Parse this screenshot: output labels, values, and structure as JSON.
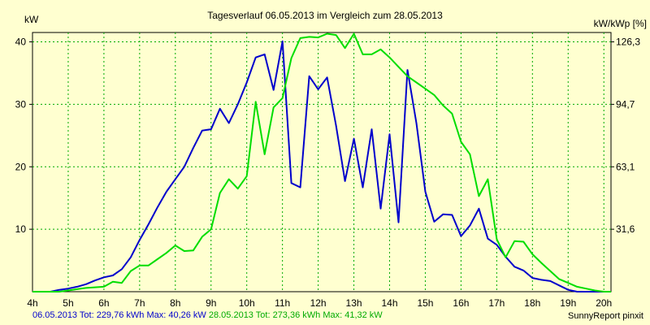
{
  "chart_data": {
    "type": "line",
    "title": "Tagesverlauf 06.05.2013 im Vergleich zum 28.05.2013",
    "ylabel_left": "kW",
    "ylabel_right": "kW/kWp [%]",
    "xlim": [
      4,
      20.2
    ],
    "ylim": [
      0,
      41.5
    ],
    "grid": true,
    "x_ticks": [
      {
        "value": 4,
        "label": "4h"
      },
      {
        "value": 5,
        "label": "5h"
      },
      {
        "value": 6,
        "label": "6h"
      },
      {
        "value": 7,
        "label": "7h"
      },
      {
        "value": 8,
        "label": "8h"
      },
      {
        "value": 9,
        "label": "9h"
      },
      {
        "value": 10,
        "label": "10h"
      },
      {
        "value": 11,
        "label": "11h"
      },
      {
        "value": 12,
        "label": "12h"
      },
      {
        "value": 13,
        "label": "13h"
      },
      {
        "value": 14,
        "label": "14h"
      },
      {
        "value": 15,
        "label": "15h"
      },
      {
        "value": 16,
        "label": "16h"
      },
      {
        "value": 17,
        "label": "17h"
      },
      {
        "value": 18,
        "label": "18h"
      },
      {
        "value": 19,
        "label": "19h"
      },
      {
        "value": 20,
        "label": "20h"
      }
    ],
    "y_ticks_left": [
      {
        "value": 10,
        "label": "10"
      },
      {
        "value": 20,
        "label": "20"
      },
      {
        "value": 30,
        "label": "30"
      },
      {
        "value": 40,
        "label": "40"
      }
    ],
    "y_ticks_right": [
      {
        "value": 10,
        "label": "31,6"
      },
      {
        "value": 20,
        "label": "63,1"
      },
      {
        "value": 30,
        "label": "94,7"
      },
      {
        "value": 40,
        "label": "126,3"
      }
    ],
    "series": [
      {
        "name": "06.05.2013",
        "color": "#0000cc",
        "points": [
          [
            4.0,
            0
          ],
          [
            4.5,
            0
          ],
          [
            4.75,
            0.3
          ],
          [
            5.0,
            0.5
          ],
          [
            5.25,
            0.8
          ],
          [
            5.5,
            1.2
          ],
          [
            5.75,
            1.8
          ],
          [
            6.0,
            2.3
          ],
          [
            6.25,
            2.6
          ],
          [
            6.5,
            3.6
          ],
          [
            6.75,
            5.5
          ],
          [
            7.0,
            8.3
          ],
          [
            7.25,
            10.8
          ],
          [
            7.5,
            13.5
          ],
          [
            7.75,
            16.0
          ],
          [
            8.0,
            18.0
          ],
          [
            8.25,
            20.0
          ],
          [
            8.5,
            23.0
          ],
          [
            8.75,
            25.8
          ],
          [
            9.0,
            26.0
          ],
          [
            9.25,
            29.3
          ],
          [
            9.5,
            27.0
          ],
          [
            9.75,
            30.0
          ],
          [
            10.0,
            33.5
          ],
          [
            10.25,
            37.5
          ],
          [
            10.5,
            38.0
          ],
          [
            10.75,
            32.3
          ],
          [
            11.0,
            40.1
          ],
          [
            11.25,
            17.4
          ],
          [
            11.5,
            16.7
          ],
          [
            11.75,
            34.5
          ],
          [
            12.0,
            32.4
          ],
          [
            12.25,
            34.3
          ],
          [
            12.5,
            26.6
          ],
          [
            12.75,
            17.7
          ],
          [
            13.0,
            24.5
          ],
          [
            13.25,
            16.7
          ],
          [
            13.5,
            26.0
          ],
          [
            13.75,
            13.3
          ],
          [
            14.0,
            25.2
          ],
          [
            14.25,
            11.1
          ],
          [
            14.5,
            35.5
          ],
          [
            14.75,
            27.0
          ],
          [
            15.0,
            16.0
          ],
          [
            15.25,
            11.2
          ],
          [
            15.5,
            12.4
          ],
          [
            15.75,
            12.3
          ],
          [
            16.0,
            8.9
          ],
          [
            16.25,
            10.6
          ],
          [
            16.5,
            13.3
          ],
          [
            16.75,
            8.5
          ],
          [
            17.0,
            7.5
          ],
          [
            17.25,
            5.6
          ],
          [
            17.5,
            4.0
          ],
          [
            17.75,
            3.4
          ],
          [
            18.0,
            2.2
          ],
          [
            18.25,
            1.9
          ],
          [
            18.5,
            1.7
          ],
          [
            18.75,
            1.0
          ],
          [
            19.0,
            0.3
          ],
          [
            19.25,
            0
          ],
          [
            20.0,
            0
          ]
        ]
      },
      {
        "name": "28.05.2013",
        "color": "#00dd00",
        "points": [
          [
            4.0,
            0
          ],
          [
            4.75,
            0
          ],
          [
            5.0,
            0.2
          ],
          [
            5.25,
            0.4
          ],
          [
            5.5,
            0.6
          ],
          [
            6.0,
            0.8
          ],
          [
            6.25,
            1.6
          ],
          [
            6.5,
            1.4
          ],
          [
            6.75,
            3.3
          ],
          [
            7.0,
            4.2
          ],
          [
            7.25,
            4.2
          ],
          [
            7.5,
            5.2
          ],
          [
            7.75,
            6.2
          ],
          [
            8.0,
            7.4
          ],
          [
            8.25,
            6.5
          ],
          [
            8.5,
            6.6
          ],
          [
            8.75,
            8.8
          ],
          [
            9.0,
            10.0
          ],
          [
            9.25,
            15.8
          ],
          [
            9.5,
            18.0
          ],
          [
            9.75,
            16.5
          ],
          [
            10.0,
            18.5
          ],
          [
            10.25,
            30.4
          ],
          [
            10.5,
            22.0
          ],
          [
            10.75,
            29.5
          ],
          [
            11.0,
            31.0
          ],
          [
            11.25,
            37.4
          ],
          [
            11.5,
            40.6
          ],
          [
            11.75,
            40.8
          ],
          [
            12.0,
            40.7
          ],
          [
            12.25,
            41.3
          ],
          [
            12.5,
            41.1
          ],
          [
            12.75,
            39.0
          ],
          [
            13.0,
            41.3
          ],
          [
            13.25,
            38.0
          ],
          [
            13.5,
            38.0
          ],
          [
            13.75,
            38.8
          ],
          [
            14.0,
            37.5
          ],
          [
            14.25,
            36.0
          ],
          [
            14.5,
            34.5
          ],
          [
            14.75,
            33.5
          ],
          [
            15.0,
            32.5
          ],
          [
            15.25,
            31.5
          ],
          [
            15.5,
            29.8
          ],
          [
            15.75,
            28.5
          ],
          [
            16.0,
            24.0
          ],
          [
            16.25,
            22.0
          ],
          [
            16.5,
            15.3
          ],
          [
            16.75,
            18.0
          ],
          [
            17.0,
            8.4
          ],
          [
            17.25,
            5.5
          ],
          [
            17.5,
            8.1
          ],
          [
            17.75,
            8.0
          ],
          [
            18.0,
            6.0
          ],
          [
            18.25,
            4.6
          ],
          [
            18.5,
            3.3
          ],
          [
            18.75,
            2.0
          ],
          [
            19.0,
            1.4
          ],
          [
            19.25,
            0.8
          ],
          [
            19.5,
            0.5
          ],
          [
            19.75,
            0.2
          ],
          [
            20.0,
            0
          ],
          [
            20.2,
            0
          ]
        ]
      }
    ]
  },
  "footer": {
    "series1_text": "06.05.2013 Tot: 229,76 kWh Max: 40,26 kW",
    "series2_text": "28.05.2013 Tot: 273,36 kWh Max: 41,32 kW",
    "credit": "SunnyReport pinxit"
  }
}
